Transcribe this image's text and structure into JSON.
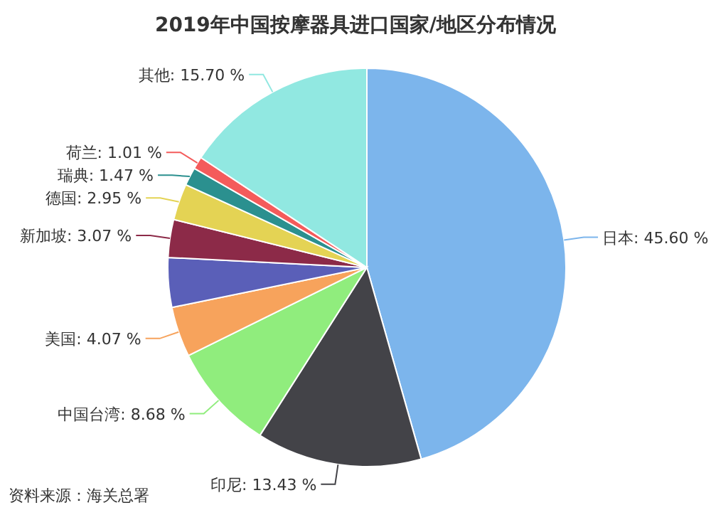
{
  "chart_data": {
    "type": "pie",
    "title": "2019年中国按摩器具进口国家/地区分布情况",
    "categories": [
      "日本",
      "印尼",
      "中国台湾",
      "美国",
      null,
      "新加坡",
      "德国",
      "瑞典",
      "荷兰",
      "其他"
    ],
    "values": [
      45.6,
      13.43,
      8.68,
      4.07,
      4.02,
      3.07,
      2.95,
      1.47,
      1.01,
      15.7
    ],
    "value_labels": [
      "45.60 %",
      "13.43 %",
      "8.68 %",
      "4.07 %",
      null,
      "3.07 %",
      "2.95 %",
      "1.47 %",
      "1.01 %",
      "15.70 %"
    ],
    "colors": [
      "#7cb5ec",
      "#434348",
      "#90ed7d",
      "#f7a35c",
      "#5a5fb8",
      "#8c2a48",
      "#e4d354",
      "#2b908f",
      "#f45b5b",
      "#91e8e1"
    ],
    "annotations": [
      "资料来源：海关总署"
    ]
  }
}
